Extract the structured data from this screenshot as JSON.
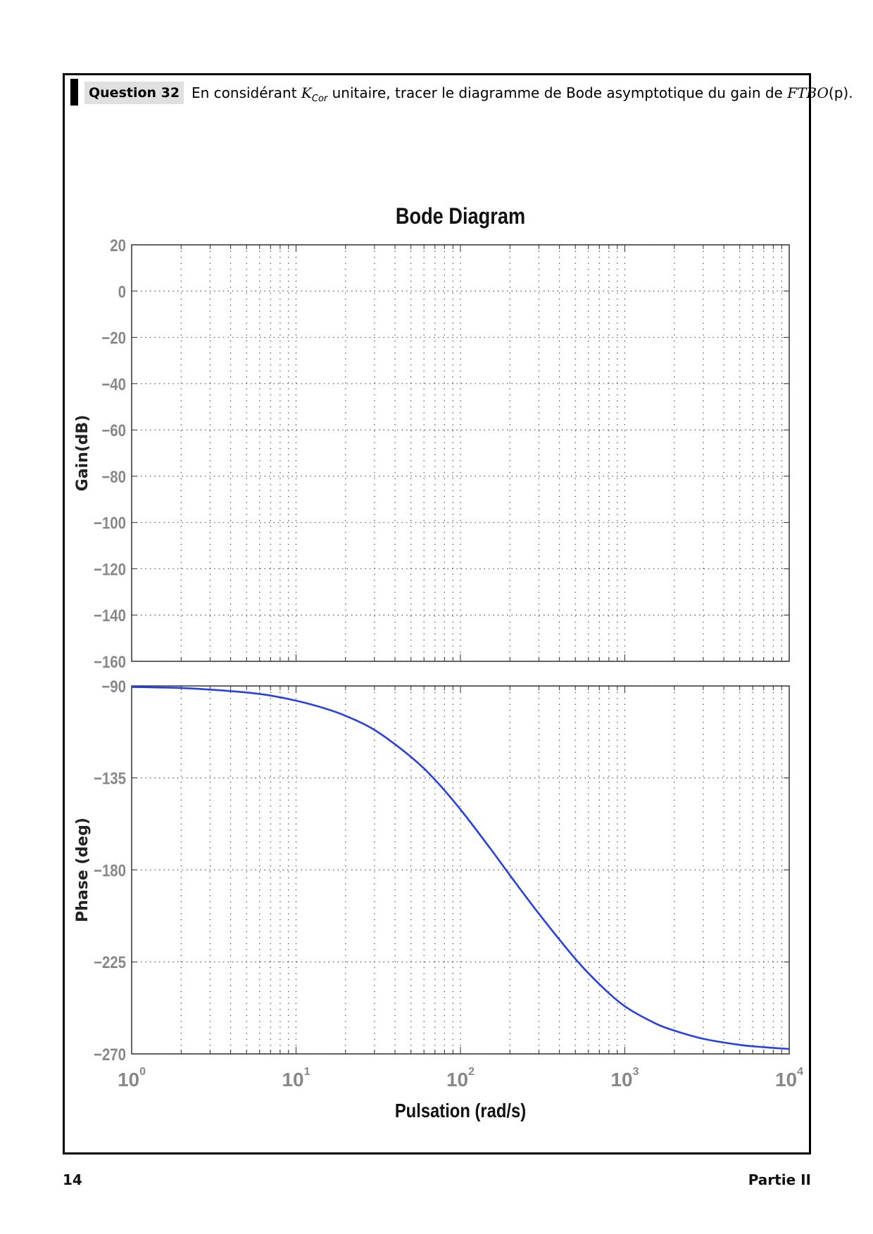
{
  "question": {
    "label": "Question 32",
    "text_before": "En considérant ",
    "k_symbol": "K",
    "k_sub": "Cor",
    "text_middle": " unitaire, tracer le diagramme de Bode asymptotique du gain de ",
    "ftbo": "FTBO",
    "ftbo_arg": "(p)",
    "text_end": "."
  },
  "footer": {
    "page_number": "14",
    "part": "Partie II"
  },
  "colors": {
    "curve": "#2741e0",
    "grid": "#555555",
    "axis": "#333333",
    "tick_label": "#888888"
  },
  "chart_data": [
    {
      "type": "line",
      "title": "Bode Diagram",
      "xlabel": "",
      "ylabel": "Gain(dB)",
      "xscale": "log",
      "xlim": [
        1,
        10000
      ],
      "ylim": [
        -160,
        20
      ],
      "yticks": [
        20,
        0,
        -20,
        -40,
        -60,
        -80,
        -100,
        -120,
        -140,
        -160
      ],
      "grid": true,
      "series": []
    },
    {
      "type": "line",
      "title": "",
      "xlabel": "Pulsation  (rad/s)",
      "ylabel": "Phase (deg)",
      "xscale": "log",
      "xlim": [
        1,
        10000
      ],
      "ylim": [
        -270,
        -90
      ],
      "yticks": [
        -90,
        -135,
        -180,
        -225,
        -270
      ],
      "xticks": [
        {
          "base": "10",
          "exp": "0"
        },
        {
          "base": "10",
          "exp": "1"
        },
        {
          "base": "10",
          "exp": "2"
        },
        {
          "base": "10",
          "exp": "3"
        },
        {
          "base": "10",
          "exp": "4"
        }
      ],
      "grid": true,
      "series": [
        {
          "x": [
            1,
            2,
            3,
            5,
            7,
            10,
            15,
            20,
            30,
            50,
            70,
            100,
            150,
            200,
            300,
            500,
            700,
            1000,
            1500,
            2000,
            3000,
            5000,
            7000,
            10000
          ],
          "y": [
            -90.5,
            -91,
            -91.8,
            -93.2,
            -94.7,
            -97.2,
            -101,
            -104.6,
            -111.5,
            -124.7,
            -135.9,
            -150.4,
            -168.9,
            -182.6,
            -201.4,
            -223.5,
            -235.9,
            -246.7,
            -254.7,
            -258.6,
            -262.6,
            -265.6,
            -266.7,
            -267.6
          ]
        }
      ]
    }
  ]
}
